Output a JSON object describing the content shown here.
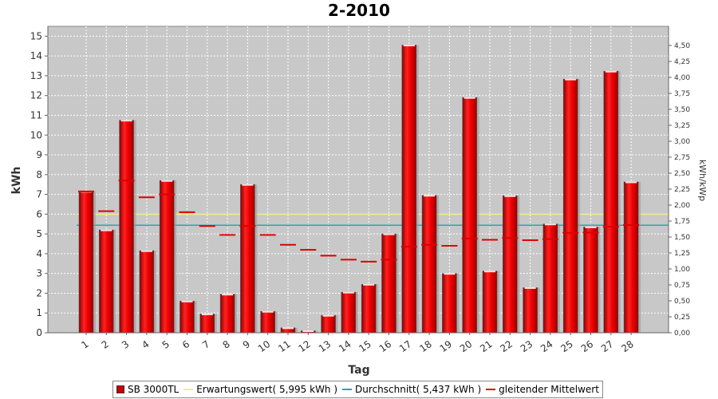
{
  "chart_data": {
    "type": "bar",
    "title": "2-2010",
    "xlabel": "Tag",
    "ylabel": "kWh",
    "y2label": "kWh/kWp",
    "ylim": [
      0,
      15.5
    ],
    "y2lim": [
      0,
      4.8
    ],
    "grid": true,
    "legend_position": "bottom",
    "categories": [
      "1",
      "2",
      "3",
      "4",
      "5",
      "6",
      "7",
      "8",
      "9",
      "10",
      "11",
      "12",
      "13",
      "14",
      "15",
      "16",
      "17",
      "18",
      "19",
      "20",
      "21",
      "22",
      "23",
      "24",
      "25",
      "26",
      "27",
      "28"
    ],
    "yticks": [
      0,
      1,
      2,
      3,
      4,
      5,
      6,
      7,
      8,
      9,
      10,
      11,
      12,
      13,
      14,
      15
    ],
    "y2ticks": [
      "0,00",
      "0,25",
      "0,50",
      "0,75",
      "1,00",
      "1,25",
      "1,50",
      "1,75",
      "2,00",
      "2,25",
      "2,50",
      "2,75",
      "3,00",
      "3,25",
      "3,50",
      "3,75",
      "4,00",
      "4,25",
      "4,50"
    ],
    "series": [
      {
        "name": "SB 3000TL",
        "kind": "bar",
        "color": "#dd0000",
        "values": [
          7.15,
          5.2,
          10.75,
          4.15,
          7.7,
          1.6,
          0.95,
          1.95,
          7.5,
          1.08,
          0.25,
          0.1,
          0.88,
          2.05,
          2.45,
          5.0,
          14.55,
          6.95,
          3.0,
          11.9,
          3.12,
          6.93,
          2.28,
          5.5,
          12.83,
          5.35,
          13.23,
          7.63
        ]
      },
      {
        "name": "gleitender Mittelwert",
        "kind": "dash",
        "color": "#dd0000",
        "values": [
          7.15,
          6.15,
          7.7,
          6.85,
          7.0,
          6.1,
          5.4,
          4.95,
          5.4,
          4.95,
          4.45,
          4.2,
          3.9,
          3.7,
          3.6,
          3.7,
          4.35,
          4.45,
          4.4,
          4.77,
          4.7,
          4.8,
          4.68,
          4.74,
          5.05,
          5.07,
          5.37,
          5.45
        ]
      }
    ],
    "reference_lines": [
      {
        "name": "Erwartungswert",
        "value": 5.995,
        "color": "#eeee88"
      },
      {
        "name": "Durchschnitt",
        "value": 5.437,
        "color": "#22aaaa"
      }
    ],
    "legend": [
      {
        "label": "SB 3000TL",
        "swatch": "box",
        "color": "#cc0000"
      },
      {
        "label": "Erwartungswert( 5,995 kWh )",
        "swatch": "line",
        "color": "#eeee88"
      },
      {
        "label": "Durchschnitt( 5,437 kWh )",
        "swatch": "line",
        "color": "#22aaaa"
      },
      {
        "label": "gleitender Mittelwert",
        "swatch": "line",
        "color": "#dd0000"
      }
    ]
  }
}
